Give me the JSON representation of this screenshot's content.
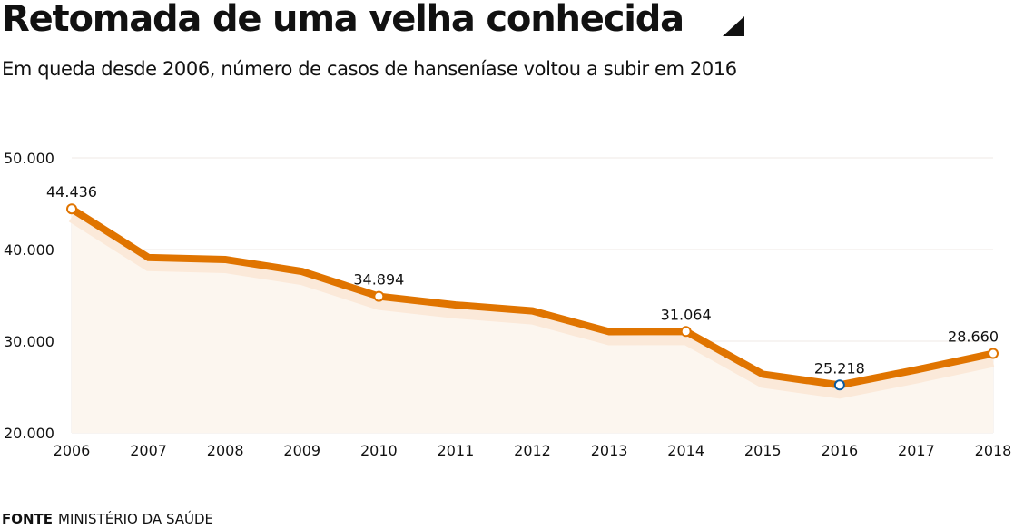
{
  "header": {
    "title": "Retomada de uma velha conhecida",
    "title_icon": "triangle-corner-icon",
    "subtitle": "Em queda desde 2006, número de casos de hanseníase voltou a subir em 2016"
  },
  "footer": {
    "source_label": "FONTE",
    "source_value": "MINISTÉRIO DA SAÚDE"
  },
  "colors": {
    "line": "#E07400",
    "shadow": "#FBE9D9",
    "area": "#FCF6EF",
    "grid": "#EFEAE4",
    "highlight_marker": "#0A5AA0",
    "text": "#111111"
  },
  "chart_data": {
    "type": "line",
    "title": "Retomada de uma velha conhecida",
    "subtitle": "Em queda desde 2006, número de casos de hanseníase voltou a subir em 2016",
    "xlabel": "",
    "ylabel": "",
    "x": [
      "2006",
      "2007",
      "2008",
      "2009",
      "2010",
      "2011",
      "2012",
      "2013",
      "2014",
      "2015",
      "2016",
      "2017",
      "2018"
    ],
    "series": [
      {
        "name": "Casos de hanseníase",
        "values": [
          44436,
          39125,
          38914,
          37610,
          34894,
          33955,
          33303,
          31044,
          31064,
          26395,
          25218,
          26875,
          28660
        ]
      }
    ],
    "ylim": [
      20000,
      50000
    ],
    "yticks": [
      20000,
      30000,
      40000,
      50000
    ],
    "ytick_labels": [
      "20.000",
      "30.000",
      "40.000",
      "50.000"
    ],
    "grid": true,
    "legend": "none",
    "annotations": [
      {
        "x": "2006",
        "label": "44.436",
        "marker": "orange"
      },
      {
        "x": "2010",
        "label": "34.894",
        "marker": "orange"
      },
      {
        "x": "2014",
        "label": "31.064",
        "marker": "orange"
      },
      {
        "x": "2016",
        "label": "25.218",
        "marker": "blue"
      },
      {
        "x": "2018",
        "label": "28.660",
        "marker": "orange"
      }
    ],
    "source": "FONTE MINISTÉRIO DA SAÚDE"
  }
}
